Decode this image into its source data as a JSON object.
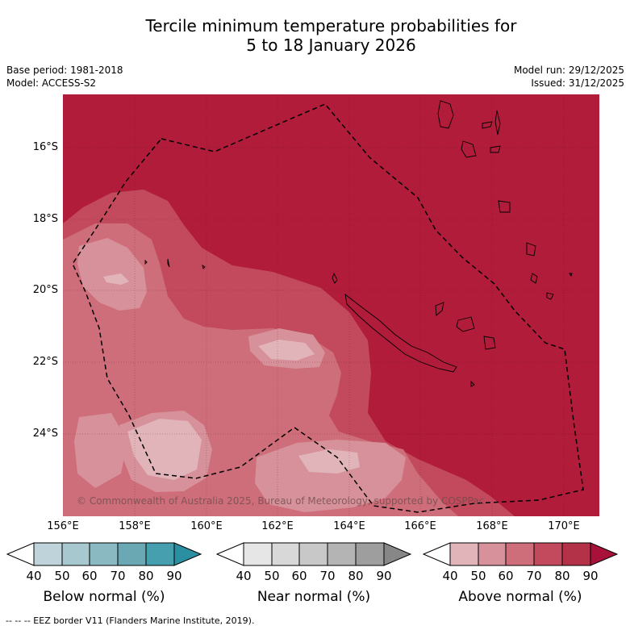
{
  "title": {
    "line1": "Tercile minimum temperature probabilities for",
    "line2": "5 to 18 January 2026"
  },
  "meta_left": {
    "base_period": "Base period: 1981-2018",
    "model": "Model: ACCESS-S2"
  },
  "meta_right": {
    "model_run": "Model run: 29/12/2025",
    "issued": "Issued: 31/12/2025"
  },
  "map": {
    "lat_labels": [
      "16°S",
      "18°S",
      "20°S",
      "22°S",
      "24°S"
    ],
    "lon_labels": [
      "156°E",
      "158°E",
      "160°E",
      "162°E",
      "164°E",
      "166°E",
      "168°E",
      "170°E"
    ],
    "copyright": "© Commonwealth of Australia 2025, Bureau of Meteorology, supported by COSPPac",
    "colors": {
      "above_90": "#b01c3a",
      "above_80": "#c24a5c",
      "above_70": "#ce6e7a",
      "above_60": "#d7919a",
      "above_50": "#e1b4ba"
    }
  },
  "colorbars": [
    {
      "label": "Below normal (%)",
      "ticks": [
        "40",
        "50",
        "60",
        "70",
        "80",
        "90"
      ],
      "colors": [
        "#ffffff",
        "#bfd4da",
        "#a6c8ce",
        "#8ab9c2",
        "#6aa8b4",
        "#469fae",
        "#2a8fa0"
      ]
    },
    {
      "label": "Near normal (%)",
      "ticks": [
        "40",
        "50",
        "60",
        "70",
        "80",
        "90"
      ],
      "colors": [
        "#ffffff",
        "#e6e6e6",
        "#d8d8d8",
        "#c8c8c8",
        "#b4b4b4",
        "#9e9e9e",
        "#878787"
      ]
    },
    {
      "label": "Above normal (%)",
      "ticks": [
        "40",
        "50",
        "60",
        "70",
        "80",
        "90"
      ],
      "colors": [
        "#ffffff",
        "#e1b4ba",
        "#d7919a",
        "#ce6e7a",
        "#c24a5c",
        "#b43247",
        "#a8123a"
      ]
    }
  ],
  "footnote": "--  --  -- EEZ border V11 (Flanders Marine Institute, 2019)."
}
